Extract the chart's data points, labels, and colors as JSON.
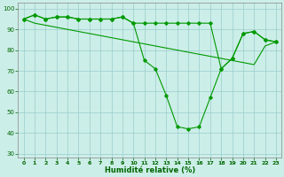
{
  "xlabel": "Humidité relative (%)",
  "background_color": "#cceee8",
  "grid_color": "#99cccc",
  "line_color": "#009900",
  "ylim": [
    28,
    103
  ],
  "xlim": [
    -0.5,
    23.5
  ],
  "yticks": [
    30,
    40,
    50,
    60,
    70,
    80,
    90,
    100
  ],
  "xticks": [
    0,
    1,
    2,
    3,
    4,
    5,
    6,
    7,
    8,
    9,
    10,
    11,
    12,
    13,
    14,
    15,
    16,
    17,
    18,
    19,
    20,
    21,
    22,
    23
  ],
  "line1_y": [
    95,
    97,
    95,
    96,
    96,
    95,
    95,
    95,
    95,
    96,
    93,
    93,
    93,
    93,
    93,
    93,
    93,
    93,
    71,
    76,
    88,
    89,
    85,
    84
  ],
  "line2_y": [
    95,
    97,
    95,
    96,
    96,
    95,
    95,
    95,
    95,
    96,
    93,
    75,
    71,
    58,
    43,
    42,
    43,
    57,
    71,
    76,
    88,
    89,
    85,
    84
  ],
  "line3_y": [
    95,
    93,
    92,
    91,
    90,
    89,
    88,
    87,
    86,
    85,
    84,
    83,
    82,
    81,
    80,
    79,
    78,
    77,
    76,
    75,
    74,
    73,
    82,
    84
  ]
}
